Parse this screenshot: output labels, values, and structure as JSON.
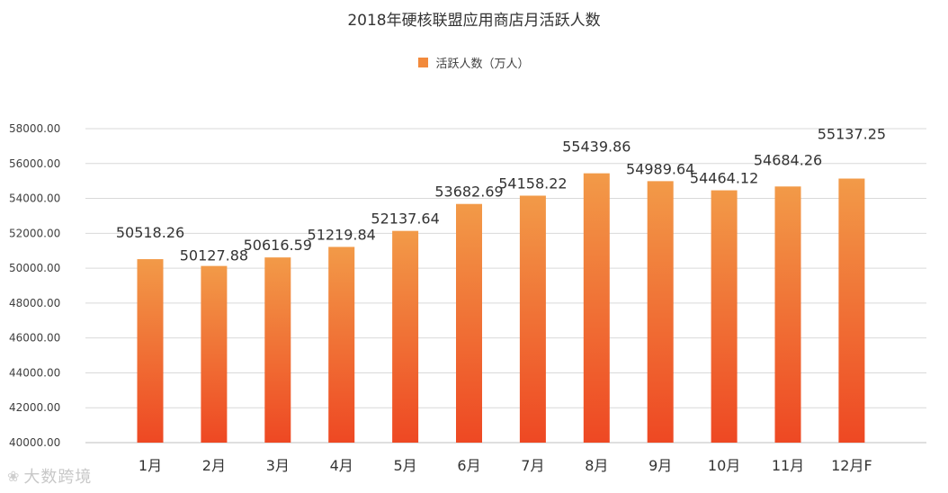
{
  "chart_data": {
    "type": "bar",
    "title": "2018年硬核联盟应用商店月活跃人数",
    "categories": [
      "1月",
      "2月",
      "3月",
      "4月",
      "5月",
      "6月",
      "7月",
      "8月",
      "9月",
      "10月",
      "11月",
      "12月F"
    ],
    "series": [
      {
        "name": "活跃人数（万人）",
        "values": [
          50518.26,
          50127.88,
          50616.59,
          51219.84,
          52137.64,
          53682.69,
          54158.22,
          55439.86,
          54989.64,
          54464.12,
          54684.26,
          55137.25
        ],
        "value_labels": [
          "50518.26",
          "50127.88",
          "50616.59",
          "51219.84",
          "52137.64",
          "53682.69",
          "54158.22",
          "55439.86",
          "54989.64",
          "54464.12",
          "54684.26",
          "55137.25"
        ],
        "color_top": "#F29A48",
        "color_bottom": "#EE4823"
      }
    ],
    "ylim": [
      40000,
      58000
    ],
    "yticks": [
      "40000.00",
      "42000.00",
      "44000.00",
      "46000.00",
      "48000.00",
      "50000.00",
      "52000.00",
      "54000.00",
      "56000.00",
      "58000.00"
    ],
    "ytick_values": [
      40000,
      42000,
      44000,
      46000,
      48000,
      50000,
      52000,
      54000,
      56000,
      58000
    ],
    "grid": true,
    "legend_position": "top-center",
    "xlabel": "",
    "ylabel": ""
  },
  "legend_label": "活跃人数（万人）",
  "legend_color": "#F28A3C",
  "watermark": {
    "icon": "chat-bubble-icon",
    "text": "大数跨境"
  }
}
